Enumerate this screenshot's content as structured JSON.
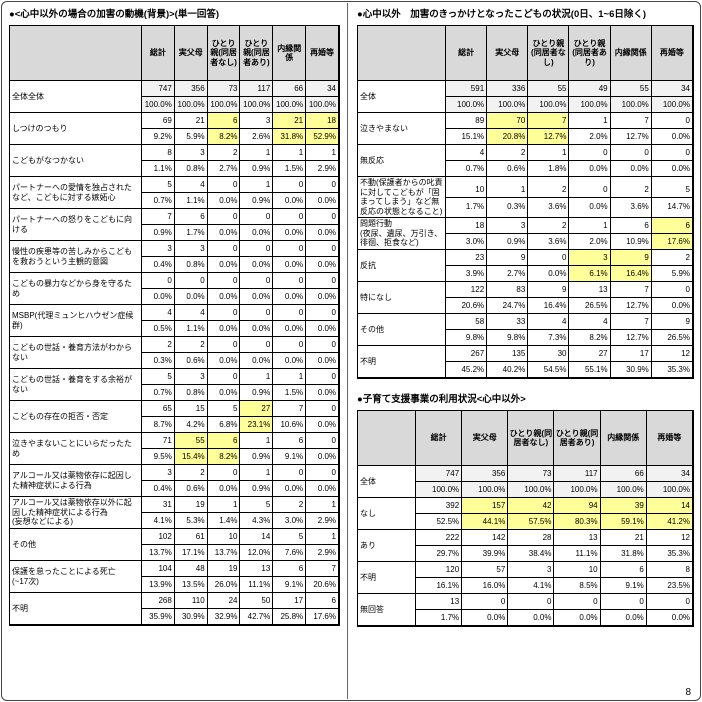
{
  "page": {
    "number": "8"
  },
  "colors": {
    "highlight": "#ffff99",
    "header_bg": "#d9d9d9",
    "total_row_bg": "#f2f2f2",
    "border": "#000000"
  },
  "columns": [
    "総計",
    "実父母",
    "ひとり親(同居者なし)",
    "ひとり親(同居者あり)",
    "内縁関係",
    "再婚等"
  ],
  "tables": [
    {
      "title": "●<心中以外の場合の加害の動機(背景)>(単一回答)",
      "rows": [
        {
          "label": "全体全体",
          "counts": [
            "747",
            "356",
            "73",
            "117",
            "66",
            "34"
          ],
          "pcts": [
            "100.0%",
            "100.0%",
            "100.0%",
            "100.0%",
            "100.0%",
            "100.0%"
          ],
          "hl": [],
          "shade": true
        },
        {
          "label": "しつけのつもり",
          "counts": [
            "69",
            "21",
            "6",
            "3",
            "21",
            "18"
          ],
          "pcts": [
            "9.2%",
            "5.9%",
            "8.2%",
            "2.6%",
            "31.8%",
            "52.9%"
          ],
          "hl": [
            2,
            4,
            5
          ],
          "shade": false
        },
        {
          "label": "こどもがなつかない",
          "counts": [
            "8",
            "3",
            "2",
            "1",
            "1",
            "1"
          ],
          "pcts": [
            "1.1%",
            "0.8%",
            "2.7%",
            "0.9%",
            "1.5%",
            "2.9%"
          ],
          "hl": [],
          "shade": false
        },
        {
          "label": "パートナーへの愛情を独占されたなど、こどもに対する嫉妬心",
          "counts": [
            "5",
            "4",
            "0",
            "1",
            "0",
            "0"
          ],
          "pcts": [
            "0.7%",
            "1.1%",
            "0.0%",
            "0.9%",
            "0.0%",
            "0.0%"
          ],
          "hl": [],
          "shade": false
        },
        {
          "label": "パートナーへの怒りをこどもに向ける",
          "counts": [
            "7",
            "6",
            "0",
            "0",
            "0",
            "0"
          ],
          "pcts": [
            "0.9%",
            "1.7%",
            "0.0%",
            "0.0%",
            "0.0%",
            "0.0%"
          ],
          "hl": [],
          "shade": false
        },
        {
          "label": "慢性の疾患等の苦しみからこどもを救おうという主観的意図",
          "counts": [
            "3",
            "3",
            "0",
            "0",
            "0",
            "0"
          ],
          "pcts": [
            "0.4%",
            "0.8%",
            "0.0%",
            "0.0%",
            "0.0%",
            "0.0%"
          ],
          "hl": [],
          "shade": false
        },
        {
          "label": "こどもの暴力などから身を守るため",
          "counts": [
            "0",
            "0",
            "0",
            "0",
            "0",
            "0"
          ],
          "pcts": [
            "0.0%",
            "0.0%",
            "0.0%",
            "0.0%",
            "0.0%",
            "0.0%"
          ],
          "hl": [],
          "shade": false
        },
        {
          "label": "MSBP(代理ミュンヒハウゼン症候群)",
          "counts": [
            "4",
            "4",
            "0",
            "0",
            "0",
            "0"
          ],
          "pcts": [
            "0.5%",
            "1.1%",
            "0.0%",
            "0.0%",
            "0.0%",
            "0.0%"
          ],
          "hl": [],
          "shade": false
        },
        {
          "label": "こどもの世話・養育方法がわからない",
          "counts": [
            "2",
            "2",
            "0",
            "0",
            "0",
            "0"
          ],
          "pcts": [
            "0.3%",
            "0.6%",
            "0.0%",
            "0.0%",
            "0.0%",
            "0.0%"
          ],
          "hl": [],
          "shade": false
        },
        {
          "label": "こどもの世話・養育をする余裕がない",
          "counts": [
            "5",
            "3",
            "0",
            "1",
            "1",
            "0"
          ],
          "pcts": [
            "0.7%",
            "0.8%",
            "0.0%",
            "0.9%",
            "1.5%",
            "0.0%"
          ],
          "hl": [],
          "shade": false
        },
        {
          "label": "こどもの存在の拒否・否定",
          "counts": [
            "65",
            "15",
            "5",
            "27",
            "7",
            "0"
          ],
          "pcts": [
            "8.7%",
            "4.2%",
            "6.8%",
            "23.1%",
            "10.6%",
            "0.0%"
          ],
          "hl": [
            3
          ],
          "shade": false
        },
        {
          "label": "泣きやまないことにいらだったため",
          "counts": [
            "71",
            "55",
            "6",
            "1",
            "6",
            "0"
          ],
          "pcts": [
            "9.5%",
            "15.4%",
            "8.2%",
            "0.9%",
            "9.1%",
            "0.0%"
          ],
          "hl": [
            1,
            2
          ],
          "shade": false
        },
        {
          "label": "アルコール又は薬物依存に起因した精神症状による行為",
          "counts": [
            "3",
            "2",
            "0",
            "1",
            "0",
            "0"
          ],
          "pcts": [
            "0.4%",
            "0.6%",
            "0.0%",
            "0.9%",
            "0.0%",
            "0.0%"
          ],
          "hl": [],
          "shade": false
        },
        {
          "label": "アルコール又は薬物依存以外に起因した精神症状による行為\n(妄想などによる)",
          "counts": [
            "31",
            "19",
            "1",
            "5",
            "2",
            "1"
          ],
          "pcts": [
            "4.1%",
            "5.3%",
            "1.4%",
            "4.3%",
            "3.0%",
            "2.9%"
          ],
          "hl": [],
          "shade": false
        },
        {
          "label": "その他",
          "counts": [
            "102",
            "61",
            "10",
            "14",
            "5",
            "1"
          ],
          "pcts": [
            "13.7%",
            "17.1%",
            "13.7%",
            "12.0%",
            "7.6%",
            "2.9%"
          ],
          "hl": [],
          "shade": false
        },
        {
          "label": "保護を怠ったことによる死亡\n(~17次)",
          "counts": [
            "104",
            "48",
            "19",
            "13",
            "6",
            "7"
          ],
          "pcts": [
            "13.9%",
            "13.5%",
            "26.0%",
            "11.1%",
            "9.1%",
            "20.6%"
          ],
          "hl": [],
          "shade": false
        },
        {
          "label": "不明",
          "counts": [
            "268",
            "110",
            "24",
            "50",
            "17",
            "6"
          ],
          "pcts": [
            "35.9%",
            "30.9%",
            "32.9%",
            "42.7%",
            "25.8%",
            "17.6%"
          ],
          "hl": [],
          "shade": false
        }
      ]
    },
    {
      "title": "●心中以外　加害のきっかけとなったこどもの状況(0日、1~6日除く)",
      "rows": [
        {
          "label": "全体",
          "counts": [
            "591",
            "336",
            "55",
            "49",
            "55",
            "34"
          ],
          "pcts": [
            "100.0%",
            "100.0%",
            "100.0%",
            "100.0%",
            "100.0%",
            "100.0%"
          ],
          "hl": [],
          "shade": true
        },
        {
          "label": "泣きやまない",
          "counts": [
            "89",
            "70",
            "7",
            "1",
            "7",
            "0"
          ],
          "pcts": [
            "15.1%",
            "20.8%",
            "12.7%",
            "2.0%",
            "12.7%",
            "0.0%"
          ],
          "hl": [
            1,
            2
          ],
          "shade": false
        },
        {
          "label": "無反応",
          "counts": [
            "4",
            "2",
            "1",
            "0",
            "0",
            "0"
          ],
          "pcts": [
            "0.7%",
            "0.6%",
            "1.8%",
            "0.0%",
            "0.0%",
            "0.0%"
          ],
          "hl": [],
          "shade": false
        },
        {
          "label": "不動(保護者からの叱責に対してこどもが「固まってしまう」など無反応の状態となること)",
          "counts": [
            "10",
            "1",
            "2",
            "0",
            "2",
            "5"
          ],
          "pcts": [
            "1.7%",
            "0.3%",
            "3.6%",
            "0.0%",
            "3.6%",
            "14.7%"
          ],
          "hl": [],
          "shade": false
        },
        {
          "label": "問題行動\n(夜尿、遺尿、万引き、徘徊、拒食など)",
          "counts": [
            "18",
            "3",
            "2",
            "1",
            "6",
            "6"
          ],
          "pcts": [
            "3.0%",
            "0.9%",
            "3.6%",
            "2.0%",
            "10.9%",
            "17.6%"
          ],
          "hl": [
            5
          ],
          "shade": false
        },
        {
          "label": "反抗",
          "counts": [
            "23",
            "9",
            "0",
            "3",
            "9",
            "2"
          ],
          "pcts": [
            "3.9%",
            "2.7%",
            "0.0%",
            "6.1%",
            "16.4%",
            "5.9%"
          ],
          "hl": [
            3,
            4
          ],
          "shade": false
        },
        {
          "label": "特になし",
          "counts": [
            "122",
            "83",
            "9",
            "13",
            "7",
            "0"
          ],
          "pcts": [
            "20.6%",
            "24.7%",
            "16.4%",
            "26.5%",
            "12.7%",
            "0.0%"
          ],
          "hl": [],
          "shade": false
        },
        {
          "label": "その他",
          "counts": [
            "58",
            "33",
            "4",
            "4",
            "7",
            "9"
          ],
          "pcts": [
            "9.8%",
            "9.8%",
            "7.3%",
            "8.2%",
            "12.7%",
            "26.5%"
          ],
          "hl": [],
          "shade": false
        },
        {
          "label": "不明",
          "counts": [
            "267",
            "135",
            "30",
            "27",
            "17",
            "12"
          ],
          "pcts": [
            "45.2%",
            "40.2%",
            "54.5%",
            "55.1%",
            "30.9%",
            "35.3%"
          ],
          "hl": [],
          "shade": false
        }
      ]
    },
    {
      "title": "●子育て支援事業の利用状況<心中以外>",
      "rows": [
        {
          "label": "全体",
          "counts": [
            "747",
            "356",
            "73",
            "117",
            "66",
            "34"
          ],
          "pcts": [
            "100.0%",
            "100.0%",
            "100.0%",
            "100.0%",
            "100.0%",
            "100.0%"
          ],
          "hl": [],
          "shade": true
        },
        {
          "label": "なし",
          "counts": [
            "392",
            "157",
            "42",
            "94",
            "39",
            "14"
          ],
          "pcts": [
            "52.5%",
            "44.1%",
            "57.5%",
            "80.3%",
            "59.1%",
            "41.2%"
          ],
          "hl": [
            1,
            2,
            3,
            4,
            5
          ],
          "shade": false
        },
        {
          "label": "あり",
          "counts": [
            "222",
            "142",
            "28",
            "13",
            "21",
            "12"
          ],
          "pcts": [
            "29.7%",
            "39.9%",
            "38.4%",
            "11.1%",
            "31.8%",
            "35.3%"
          ],
          "hl": [],
          "shade": false
        },
        {
          "label": "不明",
          "counts": [
            "120",
            "57",
            "3",
            "10",
            "6",
            "8"
          ],
          "pcts": [
            "16.1%",
            "16.0%",
            "4.1%",
            "8.5%",
            "9.1%",
            "23.5%"
          ],
          "hl": [],
          "shade": false
        },
        {
          "label": "無回答",
          "counts": [
            "13",
            "0",
            "0",
            "0",
            "0",
            "0"
          ],
          "pcts": [
            "1.7%",
            "0.0%",
            "0.0%",
            "0.0%",
            "0.0%",
            "0.0%"
          ],
          "hl": [],
          "shade": false
        }
      ]
    }
  ]
}
